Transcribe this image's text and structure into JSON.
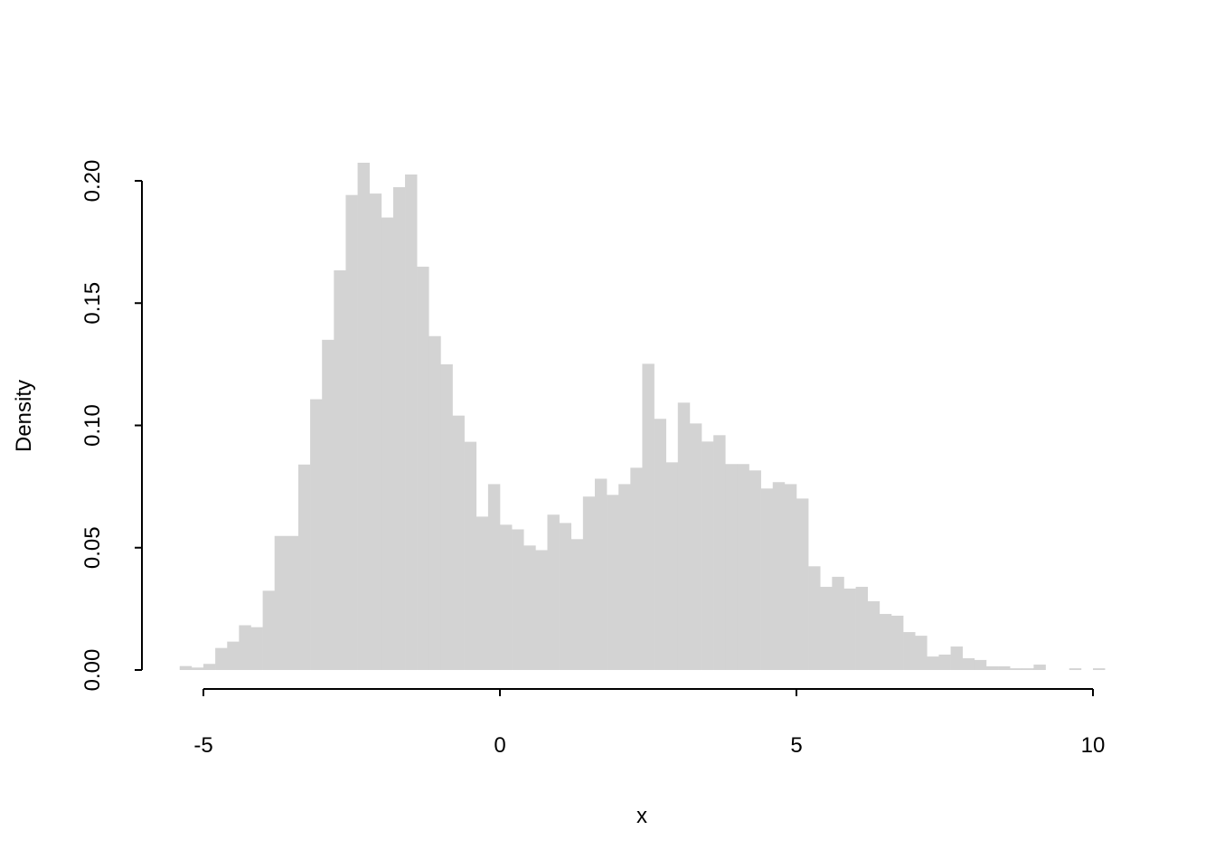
{
  "chart_data": {
    "type": "bar",
    "subtype": "histogram",
    "title": "",
    "xlabel": "x",
    "ylabel": "Density",
    "bin_start": -5.4,
    "bin_width": 0.2,
    "values": [
      0.0016,
      0.001,
      0.0025,
      0.009,
      0.0116,
      0.0183,
      0.0175,
      0.0324,
      0.0548,
      0.0548,
      0.084,
      0.1107,
      0.135,
      0.1634,
      0.1942,
      0.2074,
      0.1948,
      0.185,
      0.1974,
      0.2026,
      0.1649,
      0.1365,
      0.125,
      0.104,
      0.0933,
      0.0627,
      0.076,
      0.0594,
      0.0575,
      0.0509,
      0.049,
      0.0635,
      0.0601,
      0.0535,
      0.0709,
      0.0782,
      0.0716,
      0.076,
      0.0827,
      0.1252,
      0.1027,
      0.0849,
      0.1093,
      0.1008,
      0.0934,
      0.096,
      0.0842,
      0.0842,
      0.0816,
      0.0742,
      0.0768,
      0.076,
      0.0701,
      0.0424,
      0.034,
      0.0381,
      0.0333,
      0.034,
      0.0281,
      0.0229,
      0.0222,
      0.0155,
      0.014,
      0.0055,
      0.0063,
      0.0096,
      0.0048,
      0.0041,
      0.0015,
      0.0015,
      0.0007,
      0.0007,
      0.0022,
      0,
      0,
      0.0007,
      0,
      0.0007
    ],
    "xticks": [
      -5,
      0,
      5,
      10
    ],
    "xtick_labels": [
      "-5",
      "0",
      "5",
      "10"
    ],
    "yticks": [
      0,
      0.05,
      0.1,
      0.15,
      0.2
    ],
    "ytick_labels": [
      "0.00",
      "0.05",
      "0.10",
      "0.15",
      "0.20"
    ],
    "ylim": [
      0,
      0.2
    ],
    "grid": false,
    "colors": {
      "bar_fill": "#d3d3d3",
      "axis": "#000000"
    }
  }
}
